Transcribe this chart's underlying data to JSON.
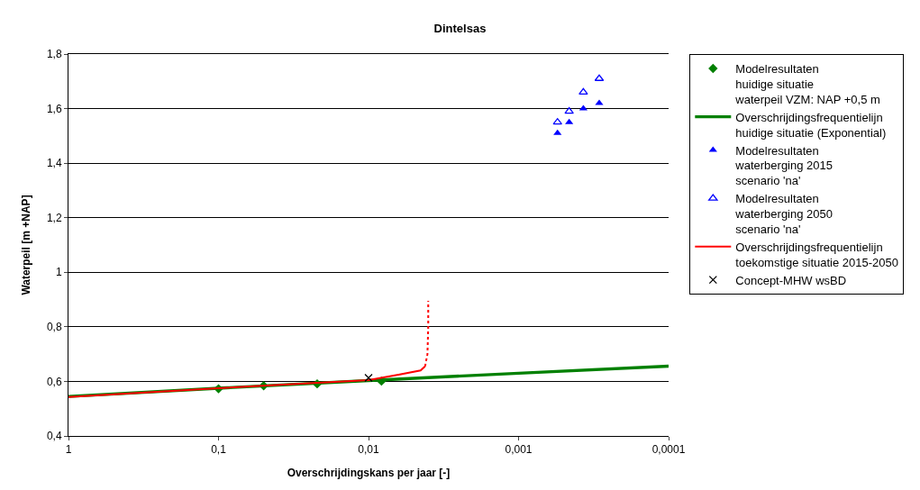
{
  "chart_data": {
    "type": "scatter",
    "title": "Dintelsas",
    "xlabel": "Overschrijdingskans per jaar [-]",
    "ylabel": "Waterpeil [m +NAP]",
    "log": "x",
    "grid": "y",
    "legend": "right",
    "xlim": [
      1,
      0.0001
    ],
    "xticks": [
      1,
      {
        "value": 0.1,
        "label": "0,1"
      },
      {
        "value": 0.01,
        "label": "0,01"
      },
      {
        "value": 0.001,
        "label": "0,001"
      },
      {
        "value": 0.0001,
        "label": "0,0001"
      }
    ],
    "ylim": [
      0.4,
      1.8
    ],
    "yticks": [
      {
        "value": 0.4,
        "label": "0,4"
      },
      {
        "value": 0.6,
        "label": "0,6"
      },
      {
        "value": 0.8,
        "label": "0,8"
      },
      1,
      {
        "value": 1.2,
        "label": "1,2"
      },
      {
        "value": 1.4,
        "label": "1,4"
      },
      {
        "value": 1.6,
        "label": "1,6"
      },
      {
        "value": 1.8,
        "label": "1,8"
      }
    ],
    "series": [
      {
        "name": "Modelresultaten\nhuidige situatie\nwaterpeil VZM: NAP +0,5 m",
        "marker": "diamond",
        "color": "#008000",
        "x": [
          0.1,
          0.05,
          0.022,
          0.0082
        ],
        "values": [
          0.573,
          0.584,
          0.591,
          0.601
        ]
      },
      {
        "name": "Overschrijdingsfrequentielijn\nhuidige situatie (Exponential)",
        "type": "line",
        "marker": "none",
        "line_style": "solid",
        "color": "#008000",
        "x": [
          1,
          0.1,
          0.01,
          0.001,
          0.0001
        ],
        "values": [
          0.545,
          0.575,
          0.603,
          0.63,
          0.656
        ]
      },
      {
        "name": "Modelresultaten\nwaterberging 2015\nscenario 'na'",
        "marker": "triangle",
        "color": "#0000ff",
        "x": [
          0.00055,
          0.00046,
          0.00037,
          0.00029
        ],
        "values": [
          1.51,
          1.55,
          1.6,
          1.62
        ]
      },
      {
        "name": "Modelresultaten\nwaterberging 2050\nscenario 'na'",
        "marker": "triangle-open",
        "color": "#0000ff",
        "x": [
          0.00055,
          0.00046,
          0.00037,
          0.00029
        ],
        "values": [
          1.55,
          1.59,
          1.66,
          1.71
        ]
      },
      {
        "name": "Overschrijdingsfrequentielijn\ntoekomstige situatie 2015-2050",
        "type": "line",
        "marker": "none",
        "line_style": "solid",
        "color": "#ff0000",
        "x": [
          1,
          0.1,
          0.01,
          0.0062,
          0.0045,
          0.0042
        ],
        "values": [
          0.543,
          0.575,
          0.605,
          0.625,
          0.64,
          0.655
        ]
      },
      {
        "type": "line",
        "marker": "none",
        "line_style": "dotted",
        "color": "#ff0000",
        "x": [
          0.0042,
          0.00405,
          0.004,
          0.004
        ],
        "values": [
          0.655,
          0.7,
          0.8,
          0.895
        ]
      },
      {
        "name": "Concept-MHW wsBD",
        "marker": "cross",
        "color": "#000000",
        "x": [
          0.01
        ],
        "values": [
          0.613
        ]
      }
    ]
  }
}
